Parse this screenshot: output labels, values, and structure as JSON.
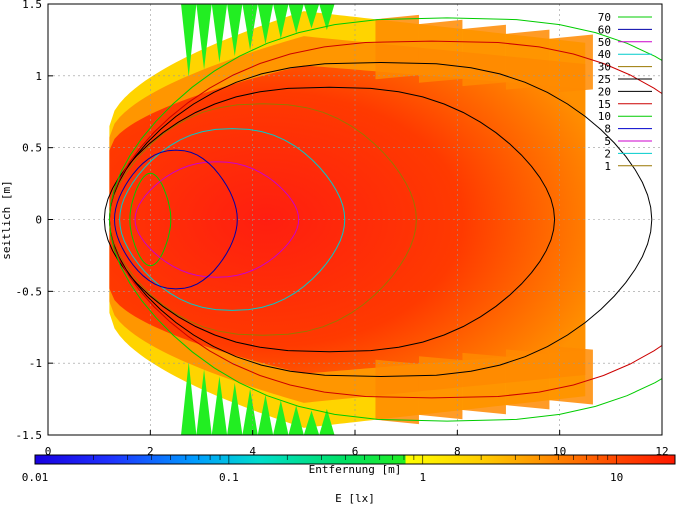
{
  "chart_data": {
    "type": "heatmap",
    "xlabel": "Entfernung [m]",
    "ylabel": "seitlich [m]",
    "colorbar_label": "E [lx]",
    "xlim": [
      0,
      12
    ],
    "ylim": [
      -1.5,
      1.5
    ],
    "x_ticks": [
      "0",
      "2",
      "4",
      "6",
      "8",
      "10",
      "12"
    ],
    "y_ticks": [
      "1.5",
      "1",
      "0.5",
      "0",
      "-0.5",
      "-1",
      "-1.5"
    ],
    "colorbar_ticks": [
      "0.01",
      "0.1",
      "1",
      "10"
    ],
    "colorbar_range": [
      0.01,
      20
    ],
    "colorbar_scale": "log",
    "grid": true,
    "legend_position": "top-right",
    "contour_levels": [
      {
        "value": "70",
        "color": "#00cc00"
      },
      {
        "value": "60",
        "color": "#0000aa"
      },
      {
        "value": "50",
        "color": "#cc00cc"
      },
      {
        "value": "40",
        "color": "#00cccc"
      },
      {
        "value": "30",
        "color": "#997700"
      },
      {
        "value": "25",
        "color": "#000000"
      },
      {
        "value": "20",
        "color": "#000000"
      },
      {
        "value": "15",
        "color": "#cc0000"
      },
      {
        "value": "10",
        "color": "#00cc00"
      },
      {
        "value": "8",
        "color": "#0000cc"
      },
      {
        "value": "5",
        "color": "#cc00cc"
      },
      {
        "value": "2",
        "color": "#00cccc"
      },
      {
        "value": "1",
        "color": "#997700"
      }
    ],
    "beam_extent": {
      "near_x": 1.2,
      "far_x": 10.5,
      "near_halfwidth": 0.65,
      "max_halfwidth": 1.45
    }
  }
}
